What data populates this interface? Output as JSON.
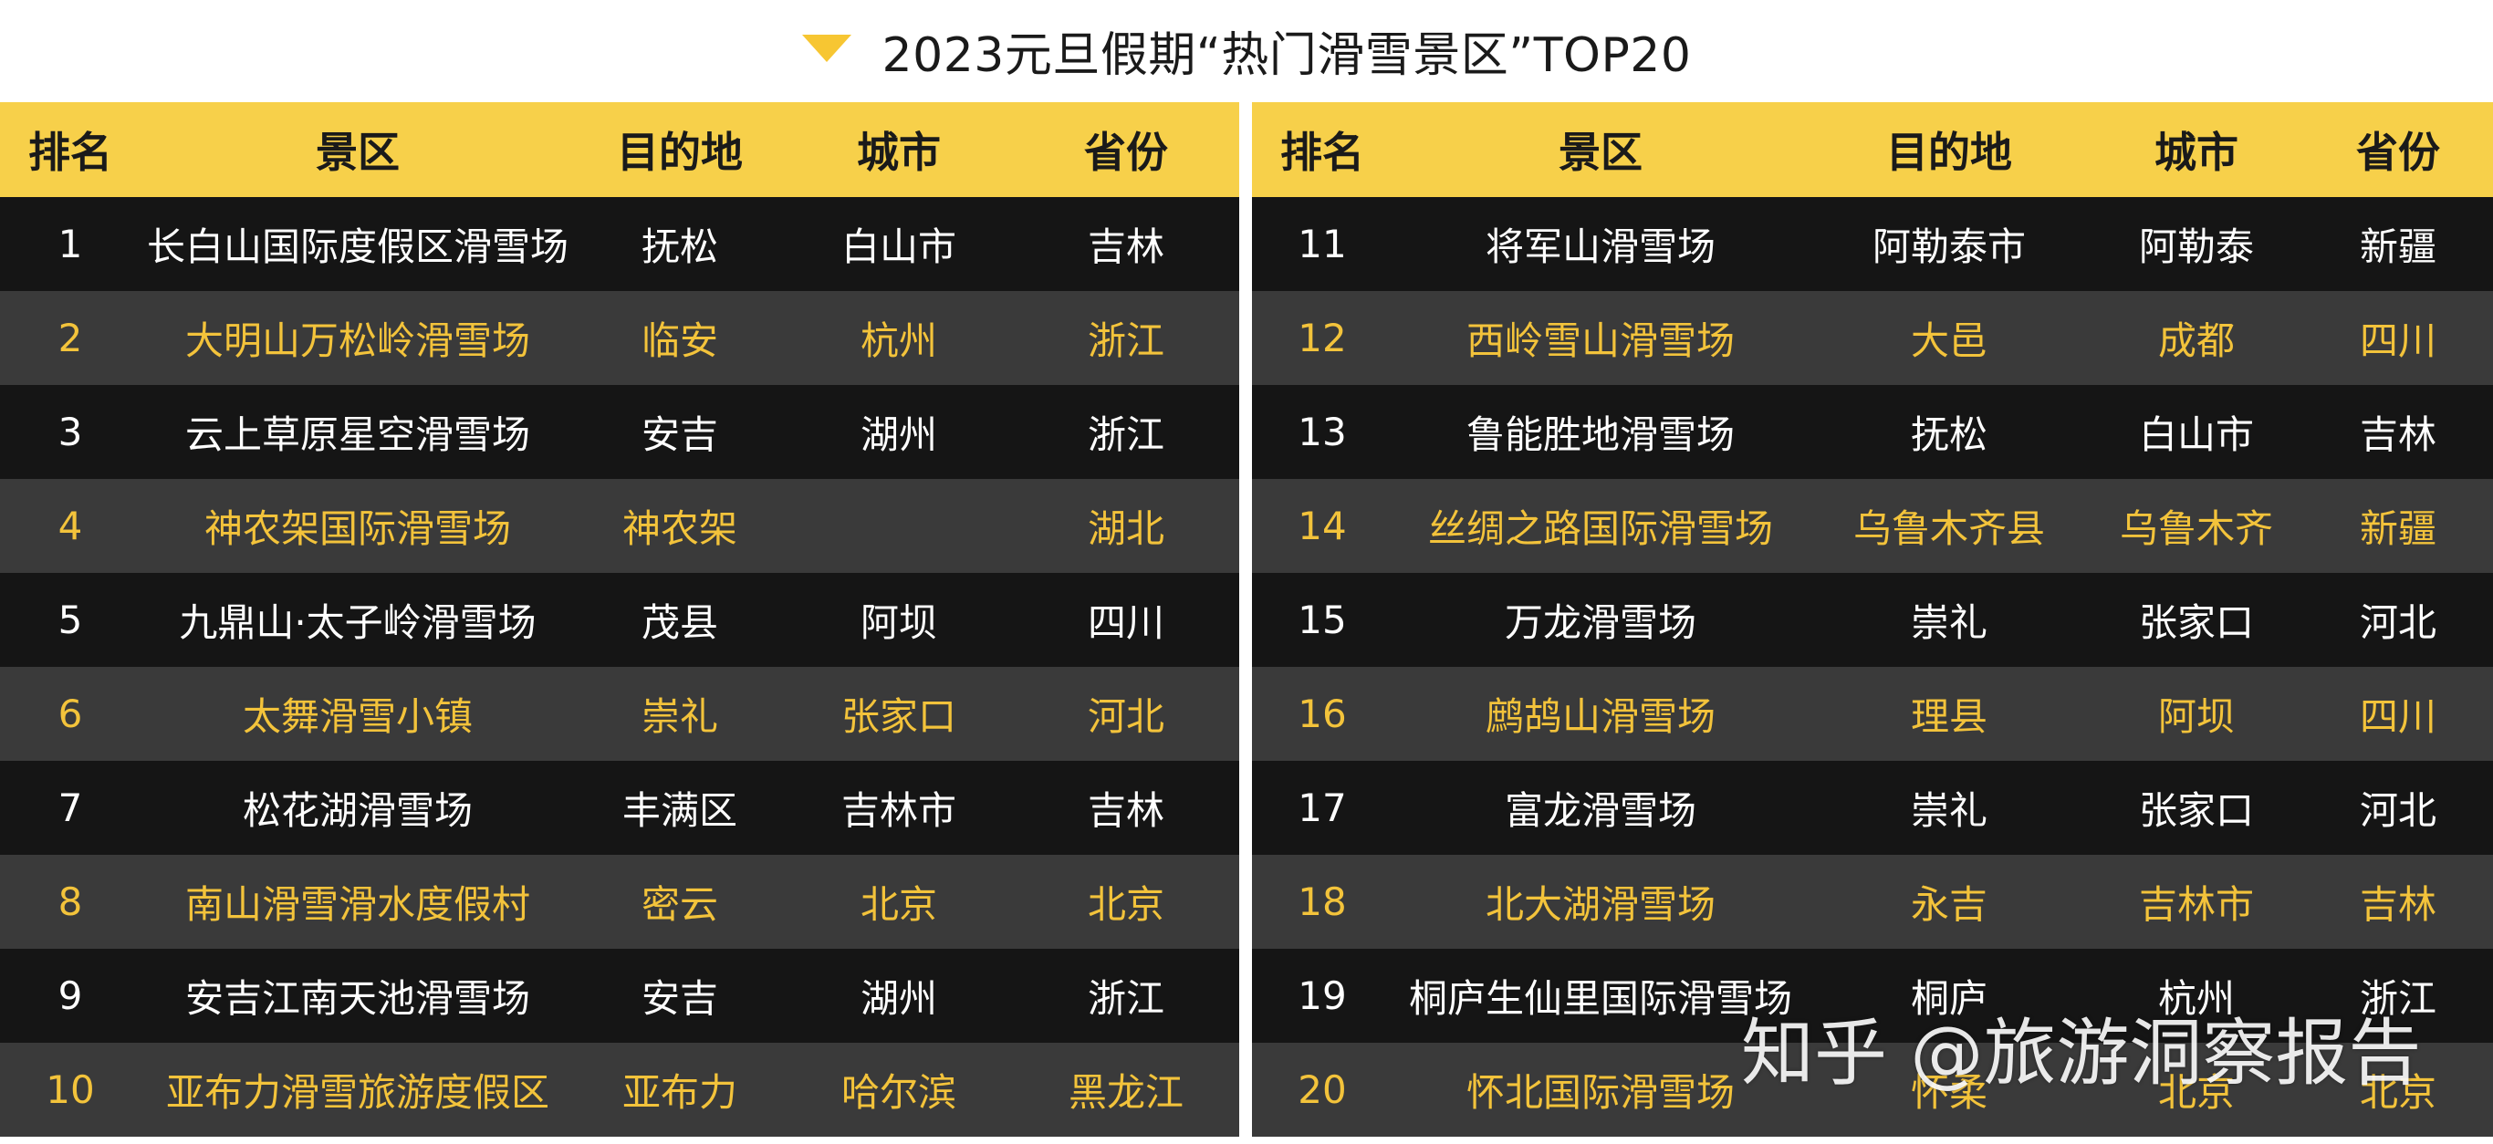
{
  "title": "2023元旦假期“热门滑雪景区”TOP20",
  "headers": {
    "rank": "排名",
    "area": "景区",
    "destination": "目的地",
    "city": "城市",
    "province": "省份"
  },
  "left_rows": [
    {
      "rank": "1",
      "area": "长白山国际度假区滑雪场",
      "destination": "抚松",
      "city": "白山市",
      "province": "吉林"
    },
    {
      "rank": "2",
      "area": "大明山万松岭滑雪场",
      "destination": "临安",
      "city": "杭州",
      "province": "浙江"
    },
    {
      "rank": "3",
      "area": "云上草原星空滑雪场",
      "destination": "安吉",
      "city": "湖州",
      "province": "浙江"
    },
    {
      "rank": "4",
      "area": "神农架国际滑雪场",
      "destination": "神农架",
      "city": "",
      "province": "湖北"
    },
    {
      "rank": "5",
      "area": "九鼎山·太子岭滑雪场",
      "destination": "茂县",
      "city": "阿坝",
      "province": "四川"
    },
    {
      "rank": "6",
      "area": "太舞滑雪小镇",
      "destination": "崇礼",
      "city": "张家口",
      "province": "河北"
    },
    {
      "rank": "7",
      "area": "松花湖滑雪场",
      "destination": "丰满区",
      "city": "吉林市",
      "province": "吉林"
    },
    {
      "rank": "8",
      "area": "南山滑雪滑水度假村",
      "destination": "密云",
      "city": "北京",
      "province": "北京"
    },
    {
      "rank": "9",
      "area": "安吉江南天池滑雪场",
      "destination": "安吉",
      "city": "湖州",
      "province": "浙江"
    },
    {
      "rank": "10",
      "area": "亚布力滑雪旅游度假区",
      "destination": "亚布力",
      "city": "哈尔滨",
      "province": "黑龙江"
    }
  ],
  "right_rows": [
    {
      "rank": "11",
      "area": "将军山滑雪场",
      "destination": "阿勒泰市",
      "city": "阿勒泰",
      "province": "新疆"
    },
    {
      "rank": "12",
      "area": "西岭雪山滑雪场",
      "destination": "大邑",
      "city": "成都",
      "province": "四川"
    },
    {
      "rank": "13",
      "area": "鲁能胜地滑雪场",
      "destination": "抚松",
      "city": "白山市",
      "province": "吉林"
    },
    {
      "rank": "14",
      "area": "丝绸之路国际滑雪场",
      "destination": "乌鲁木齐县",
      "city": "乌鲁木齐",
      "province": "新疆"
    },
    {
      "rank": "15",
      "area": "万龙滑雪场",
      "destination": "崇礼",
      "city": "张家口",
      "province": "河北"
    },
    {
      "rank": "16",
      "area": "鹧鸪山滑雪场",
      "destination": "理县",
      "city": "阿坝",
      "province": "四川"
    },
    {
      "rank": "17",
      "area": "富龙滑雪场",
      "destination": "崇礼",
      "city": "张家口",
      "province": "河北"
    },
    {
      "rank": "18",
      "area": "北大湖滑雪场",
      "destination": "永吉",
      "city": "吉林市",
      "province": "吉林"
    },
    {
      "rank": "19",
      "area": "桐庐生仙里国际滑雪场",
      "destination": "桐庐",
      "city": "杭州",
      "province": "浙江"
    },
    {
      "rank": "20",
      "area": "怀北国际滑雪场",
      "destination": "怀柔",
      "city": "北京",
      "province": "北京"
    }
  ],
  "watermark": "知乎 @旅游洞察报告",
  "colors": {
    "header_bg": "#f7d04a",
    "row_dark": "#151515",
    "row_gray": "#3a3a3a",
    "highlight_text": "#f3c33b",
    "triangle": "#f7c632"
  }
}
